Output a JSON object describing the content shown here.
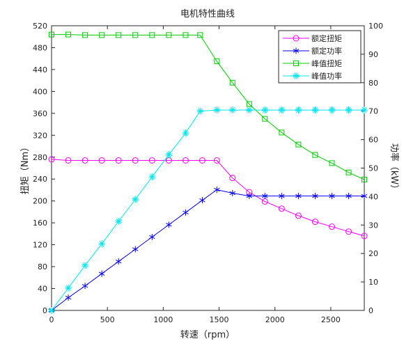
{
  "chart_data": {
    "type": "line",
    "title": "电机特性曲线",
    "xlabel": "转速（rpm）",
    "ylabel_left": "扭矩（Nm）",
    "ylabel_right": "功率（kW）",
    "xlim": [
      0,
      2800
    ],
    "ylim_left": [
      0,
      520
    ],
    "ylim_right": [
      0,
      100
    ],
    "x_ticks": [
      0,
      500,
      1000,
      1500,
      2000,
      2500
    ],
    "y_left_ticks": [
      0,
      40,
      80,
      120,
      160,
      200,
      240,
      280,
      320,
      360,
      400,
      440,
      480,
      520
    ],
    "y_right_ticks": [
      0,
      10,
      20,
      30,
      40,
      50,
      60,
      70,
      80,
      90,
      100
    ],
    "grid": false,
    "legend_position": "top-right",
    "series": [
      {
        "name": "额定扭矩",
        "axis": "left",
        "color": "#ff00ff",
        "marker": "circle",
        "x": [
          0,
          150,
          300,
          450,
          600,
          750,
          900,
          1050,
          1200,
          1350,
          1480,
          1620,
          1770,
          1910,
          2060,
          2210,
          2360,
          2510,
          2660,
          2800
        ],
        "values": [
          276,
          274,
          274,
          274,
          274,
          274,
          274,
          274,
          274,
          274,
          274,
          242,
          216,
          199,
          186,
          173,
          162,
          153,
          144,
          136
        ]
      },
      {
        "name": "额定功率",
        "axis": "right",
        "color": "#0000ff",
        "marker": "asterisk",
        "x": [
          0,
          150,
          300,
          450,
          600,
          750,
          900,
          1050,
          1200,
          1350,
          1480,
          1620,
          1770,
          1910,
          2060,
          2210,
          2360,
          2510,
          2660,
          2800
        ],
        "values": [
          0,
          4.5,
          8.6,
          12.9,
          17.2,
          21.5,
          25.8,
          30.1,
          34.4,
          38.7,
          42.4,
          41.2,
          40.2,
          40.2,
          40.2,
          40.2,
          40.2,
          40.2,
          40.2,
          40.2
        ]
      },
      {
        "name": "峰值扭矩",
        "axis": "left",
        "color": "#00cc00",
        "marker": "square",
        "x": [
          0,
          150,
          300,
          450,
          600,
          750,
          900,
          1050,
          1200,
          1330,
          1480,
          1620,
          1770,
          1910,
          2060,
          2210,
          2360,
          2510,
          2660,
          2800
        ],
        "values": [
          504,
          504,
          503,
          503,
          503,
          503,
          503,
          503,
          503,
          503,
          455,
          416,
          377,
          350,
          325,
          303,
          284,
          269,
          252,
          239
        ]
      },
      {
        "name": "峰值功率",
        "axis": "right",
        "color": "#00e5ee",
        "marker": "star",
        "x": [
          0,
          150,
          300,
          450,
          600,
          750,
          900,
          1050,
          1200,
          1330,
          1480,
          1620,
          1770,
          1910,
          2060,
          2210,
          2360,
          2510,
          2660,
          2800
        ],
        "values": [
          0,
          7.9,
          15.8,
          23.4,
          31.3,
          39.0,
          46.9,
          54.7,
          62.3,
          70,
          70.4,
          70.4,
          70.4,
          70.4,
          70.4,
          70.4,
          70.4,
          70.4,
          70.4,
          70.4
        ]
      }
    ]
  }
}
